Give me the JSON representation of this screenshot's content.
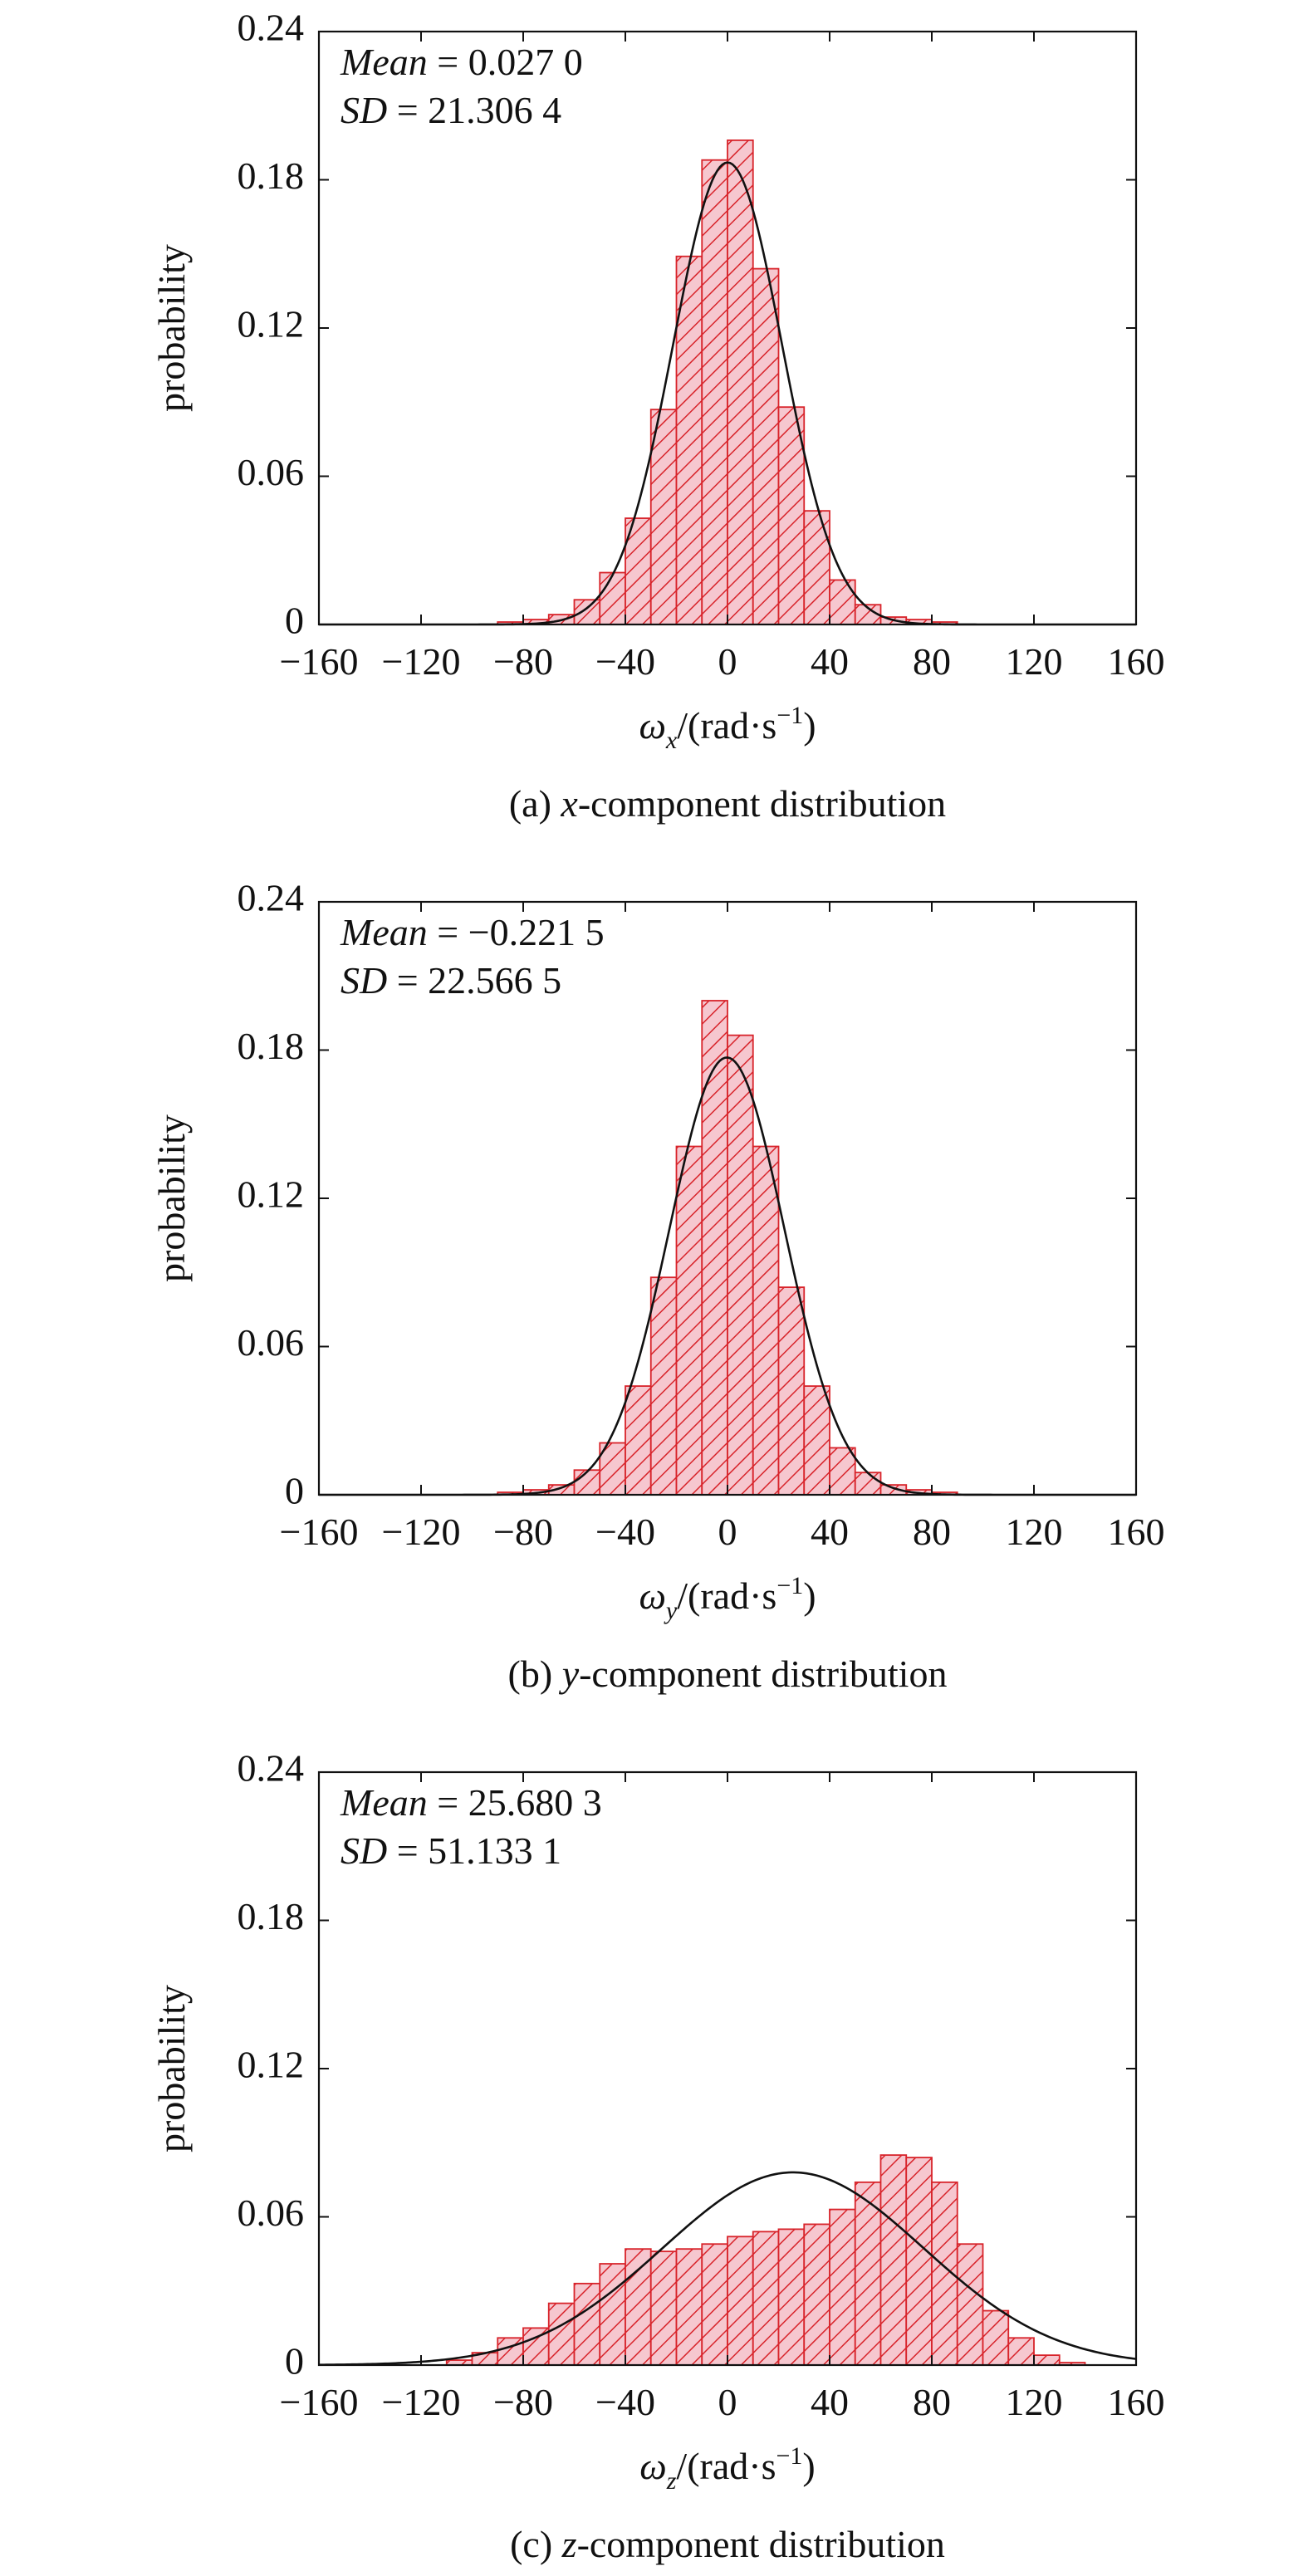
{
  "chart_data": [
    {
      "type": "bar",
      "panel": "a",
      "caption_prefix": "(a) ",
      "caption_var": "x",
      "caption_suffix": "-component distribution",
      "ylabel": "probability",
      "xlabel_symbol": "ω",
      "xlabel_sub": "x",
      "xlabel_unit": "/(rad·s",
      "xlabel_exp": "−1",
      "xlabel_close": ")",
      "stats": [
        {
          "label": "Mean",
          "value": " = 0.027 0"
        },
        {
          "label": "SD",
          "value": " = 21.306 4"
        }
      ],
      "xlim": [
        -160,
        160
      ],
      "ylim": [
        0,
        0.24
      ],
      "xticks": [
        "−160",
        "−120",
        "−80",
        "−40",
        "0",
        "40",
        "80",
        "120",
        "160"
      ],
      "yticks": [
        "0",
        "0.06",
        "0.12",
        "0.18",
        "0.24"
      ],
      "bin_width": 10,
      "bins": [
        {
          "x0": -90,
          "value": 0.001
        },
        {
          "x0": -80,
          "value": 0.002
        },
        {
          "x0": -70,
          "value": 0.004
        },
        {
          "x0": -60,
          "value": 0.01
        },
        {
          "x0": -50,
          "value": 0.021
        },
        {
          "x0": -40,
          "value": 0.043
        },
        {
          "x0": -30,
          "value": 0.087
        },
        {
          "x0": -20,
          "value": 0.149
        },
        {
          "x0": -10,
          "value": 0.188
        },
        {
          "x0": 0,
          "value": 0.196
        },
        {
          "x0": 10,
          "value": 0.144
        },
        {
          "x0": 20,
          "value": 0.088
        },
        {
          "x0": 30,
          "value": 0.046
        },
        {
          "x0": 40,
          "value": 0.018
        },
        {
          "x0": 50,
          "value": 0.008
        },
        {
          "x0": 60,
          "value": 0.003
        },
        {
          "x0": 70,
          "value": 0.002
        },
        {
          "x0": 80,
          "value": 0.001
        }
      ],
      "fit": {
        "mean": 0.027,
        "sd": 21.3064,
        "peak": 0.187
      },
      "colors": {
        "bar_edge": "#d8232a",
        "bar_fill": "#f6c7cf",
        "hatch": "#d8232a",
        "curve": "#111111"
      }
    },
    {
      "type": "bar",
      "panel": "b",
      "caption_prefix": "(b) ",
      "caption_var": "y",
      "caption_suffix": "-component distribution",
      "ylabel": "probability",
      "xlabel_symbol": "ω",
      "xlabel_sub": "y",
      "xlabel_unit": "/(rad·s",
      "xlabel_exp": "−1",
      "xlabel_close": ")",
      "stats": [
        {
          "label": "Mean",
          "value": " = −0.221 5"
        },
        {
          "label": "SD",
          "value": " = 22.566 5"
        }
      ],
      "xlim": [
        -160,
        160
      ],
      "ylim": [
        0,
        0.24
      ],
      "xticks": [
        "−160",
        "−120",
        "−80",
        "−40",
        "0",
        "40",
        "80",
        "120",
        "160"
      ],
      "yticks": [
        "0",
        "0.06",
        "0.12",
        "0.18",
        "0.24"
      ],
      "bin_width": 10,
      "bins": [
        {
          "x0": -90,
          "value": 0.001
        },
        {
          "x0": -80,
          "value": 0.002
        },
        {
          "x0": -70,
          "value": 0.004
        },
        {
          "x0": -60,
          "value": 0.01
        },
        {
          "x0": -50,
          "value": 0.021
        },
        {
          "x0": -40,
          "value": 0.044
        },
        {
          "x0": -30,
          "value": 0.088
        },
        {
          "x0": -20,
          "value": 0.141
        },
        {
          "x0": -10,
          "value": 0.2
        },
        {
          "x0": 0,
          "value": 0.186
        },
        {
          "x0": 10,
          "value": 0.141
        },
        {
          "x0": 20,
          "value": 0.084
        },
        {
          "x0": 30,
          "value": 0.044
        },
        {
          "x0": 40,
          "value": 0.019
        },
        {
          "x0": 50,
          "value": 0.009
        },
        {
          "x0": 60,
          "value": 0.004
        },
        {
          "x0": 70,
          "value": 0.002
        },
        {
          "x0": 80,
          "value": 0.001
        }
      ],
      "fit": {
        "mean": -0.2215,
        "sd": 22.5665,
        "peak": 0.177
      },
      "colors": {
        "bar_edge": "#d8232a",
        "bar_fill": "#f6c7cf",
        "hatch": "#d8232a",
        "curve": "#111111"
      }
    },
    {
      "type": "bar",
      "panel": "c",
      "caption_prefix": "(c) ",
      "caption_var": "z",
      "caption_suffix": "-component distribution",
      "ylabel": "probability",
      "xlabel_symbol": "ω",
      "xlabel_sub": "z",
      "xlabel_unit": "/(rad·s",
      "xlabel_exp": "−1",
      "xlabel_close": ")",
      "stats": [
        {
          "label": "Mean",
          "value": " = 25.680 3"
        },
        {
          "label": "SD",
          "value": " = 51.133 1"
        }
      ],
      "xlim": [
        -160,
        160
      ],
      "ylim": [
        0,
        0.24
      ],
      "xticks": [
        "−160",
        "−120",
        "−80",
        "−40",
        "0",
        "40",
        "80",
        "120",
        "160"
      ],
      "yticks": [
        "0",
        "0.06",
        "0.12",
        "0.18",
        "0.24"
      ],
      "bin_width": 10,
      "bins": [
        {
          "x0": -110,
          "value": 0.002
        },
        {
          "x0": -100,
          "value": 0.005
        },
        {
          "x0": -90,
          "value": 0.011
        },
        {
          "x0": -80,
          "value": 0.015
        },
        {
          "x0": -70,
          "value": 0.025
        },
        {
          "x0": -60,
          "value": 0.033
        },
        {
          "x0": -50,
          "value": 0.041
        },
        {
          "x0": -40,
          "value": 0.047
        },
        {
          "x0": -30,
          "value": 0.046
        },
        {
          "x0": -20,
          "value": 0.047
        },
        {
          "x0": -10,
          "value": 0.049
        },
        {
          "x0": 0,
          "value": 0.052
        },
        {
          "x0": 10,
          "value": 0.054
        },
        {
          "x0": 20,
          "value": 0.055
        },
        {
          "x0": 30,
          "value": 0.057
        },
        {
          "x0": 40,
          "value": 0.063
        },
        {
          "x0": 50,
          "value": 0.074
        },
        {
          "x0": 60,
          "value": 0.085
        },
        {
          "x0": 70,
          "value": 0.084
        },
        {
          "x0": 80,
          "value": 0.074
        },
        {
          "x0": 90,
          "value": 0.049
        },
        {
          "x0": 100,
          "value": 0.022
        },
        {
          "x0": 110,
          "value": 0.011
        },
        {
          "x0": 120,
          "value": 0.004
        },
        {
          "x0": 130,
          "value": 0.001
        }
      ],
      "fit": {
        "mean": 25.6803,
        "sd": 51.1331,
        "peak": 0.078
      },
      "colors": {
        "bar_edge": "#d8232a",
        "bar_fill": "#f6c7cf",
        "hatch": "#d8232a",
        "curve": "#111111"
      }
    }
  ]
}
